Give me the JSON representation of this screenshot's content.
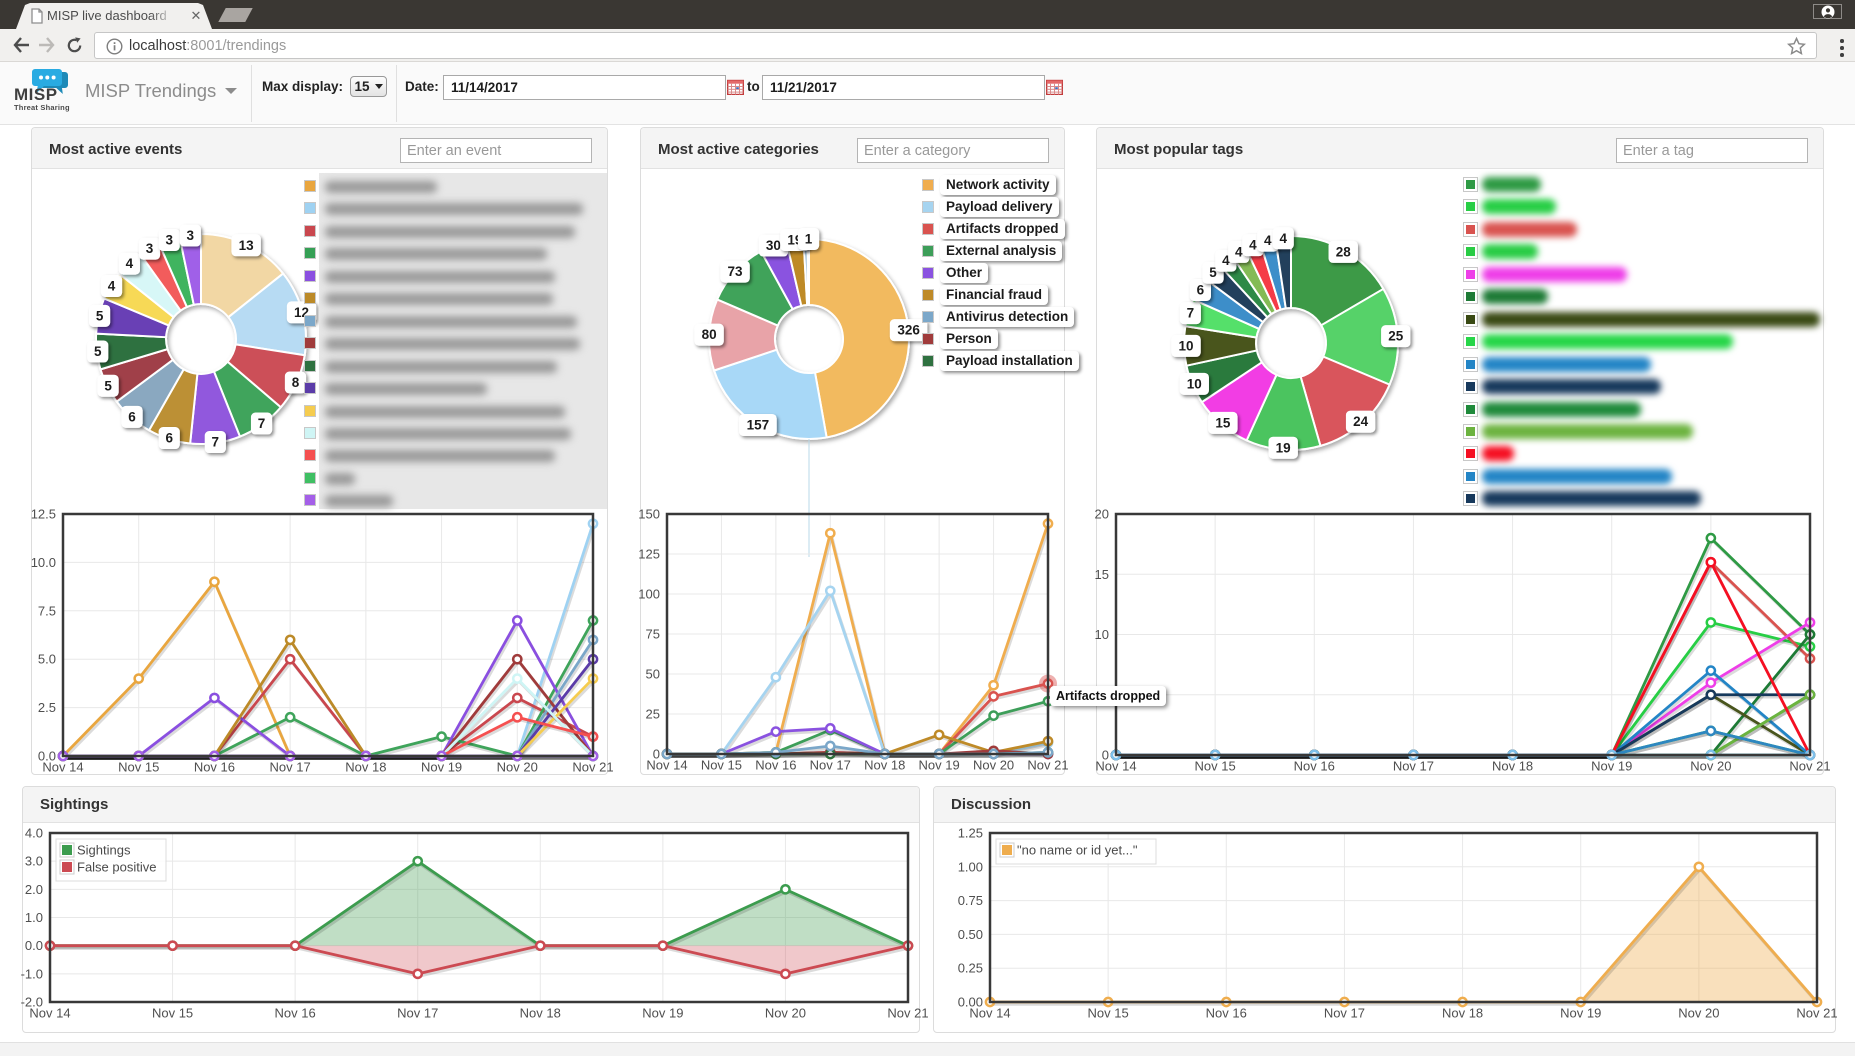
{
  "browser": {
    "tab_title": "MISP live dashboard",
    "url_host": "localhost",
    "url_rest": ":8001/trendings"
  },
  "header": {
    "brand": "MISP",
    "brand_tagline": "Threat Sharing",
    "nav_title": "MISP Trendings",
    "max_display_label": "Max display:",
    "max_display_value": "15",
    "date_label": "Date:",
    "date_from": "11/14/2017",
    "date_to_word": "to",
    "date_to": "11/21/2017"
  },
  "panels": {
    "events": {
      "title": "Most active events",
      "input_placeholder": "Enter an event"
    },
    "categories": {
      "title": "Most active categories",
      "input_placeholder": "Enter a category"
    },
    "tags": {
      "title": "Most popular tags",
      "input_placeholder": "Enter a tag"
    },
    "sightings": {
      "title": "Sightings"
    },
    "discussion": {
      "title": "Discussion"
    }
  },
  "tooltip": {
    "text": "Artifacts dropped"
  },
  "legends": {
    "events": [
      {
        "color": "#e9a63f",
        "blur_width": 112
      },
      {
        "color": "#9fd2f2",
        "blur_width": 258
      },
      {
        "color": "#c9474e",
        "blur_width": 250
      },
      {
        "color": "#35a055",
        "blur_width": 222
      },
      {
        "color": "#8a4fe0",
        "blur_width": 230
      },
      {
        "color": "#bc8a28",
        "blur_width": 228
      },
      {
        "color": "#7ba7c9",
        "blur_width": 252
      },
      {
        "color": "#a03b3b",
        "blur_width": 255
      },
      {
        "color": "#2f7140",
        "blur_width": 232
      },
      {
        "color": "#5b3ca8",
        "blur_width": 162
      },
      {
        "color": "#f5cc4f",
        "blur_width": 240
      },
      {
        "color": "#cff5f5",
        "blur_width": 246
      },
      {
        "color": "#f55050",
        "blur_width": 230
      },
      {
        "color": "#3fbf63",
        "blur_width": 30
      },
      {
        "color": "#a45fe8",
        "blur_width": 68
      }
    ],
    "categories": [
      {
        "color": "#f0ad4e",
        "label": "Network activity"
      },
      {
        "color": "#a6d4f0",
        "label": "Payload delivery"
      },
      {
        "color": "#d9534f",
        "label": "Artifacts dropped"
      },
      {
        "color": "#3d9e59",
        "label": "External analysis"
      },
      {
        "color": "#8a52e0",
        "label": "Other"
      },
      {
        "color": "#be8a28",
        "label": "Financial fraud"
      },
      {
        "color": "#7ba7c9",
        "label": "Antivirus detection"
      },
      {
        "color": "#a03b3b",
        "label": "Person"
      },
      {
        "color": "#2f7140",
        "label": "Payload installation"
      }
    ],
    "tags": [
      {
        "color": "#2e9a44",
        "pill_width": 59
      },
      {
        "color": "#27ce45",
        "pill_width": 74
      },
      {
        "color": "#d9534f",
        "pill_width": 95
      },
      {
        "color": "#28cc44",
        "pill_width": 56
      },
      {
        "color": "#ee3ee8",
        "pill_width": 145
      },
      {
        "color": "#1d7a35",
        "pill_width": 66
      },
      {
        "color": "#3a4a14",
        "pill_width": 338
      },
      {
        "color": "#26d648",
        "pill_width": 251
      },
      {
        "color": "#2385c6",
        "pill_width": 169
      },
      {
        "color": "#17395c",
        "pill_width": 179
      },
      {
        "color": "#1f8a3b",
        "pill_width": 159
      },
      {
        "color": "#6cb33f",
        "pill_width": 211
      },
      {
        "color": "#f50f22",
        "pill_width": 32
      },
      {
        "color": "#2385c6",
        "pill_width": 190
      },
      {
        "color": "#17395c",
        "pill_width": 219
      }
    ]
  },
  "chart_data": [
    {
      "id": "events-donut",
      "type": "pie",
      "title": "Most active events",
      "values": [
        13,
        12,
        8,
        7,
        7,
        6,
        6,
        5,
        5,
        5,
        4,
        4,
        3,
        3,
        3
      ],
      "labels": [
        "13",
        "12",
        "8",
        "7",
        "7",
        "6",
        "6",
        "5",
        "5",
        "5",
        "4",
        "4",
        "3",
        "3",
        "3"
      ],
      "colors": [
        "#f2d7a4",
        "#b7dbf3",
        "#cc5058",
        "#3fa45b",
        "#9159dd",
        "#bc9036",
        "#8aa8c0",
        "#a04148",
        "#2f7140",
        "#6940b5",
        "#f7d957",
        "#d7f7f7",
        "#f25c5c",
        "#41b45e",
        "#a061e8"
      ]
    },
    {
      "id": "categories-donut",
      "type": "pie",
      "title": "Most active categories",
      "values": [
        326,
        157,
        80,
        73,
        30,
        19,
        4,
        1,
        1
      ],
      "labels": [
        "326",
        "157",
        "80",
        "73",
        "30",
        "19",
        "",
        "",
        "1"
      ],
      "colors": [
        "#f2ba5e",
        "#a8d8f7",
        "#e8a3a8",
        "#3fa35a",
        "#8a52e0",
        "#be8a28",
        "#7ba7c9",
        "#a03b3b",
        "#2f7140"
      ],
      "categories": [
        "Network activity",
        "Payload delivery",
        "Artifacts dropped",
        "External analysis",
        "Other",
        "Financial fraud",
        "Antivirus detection",
        "Person",
        "Payload installation"
      ]
    },
    {
      "id": "tags-donut",
      "type": "pie",
      "title": "Most popular tags",
      "values": [
        28,
        25,
        24,
        19,
        15,
        10,
        10,
        7,
        6,
        5,
        4,
        4,
        4,
        4,
        4
      ],
      "labels": [
        "28",
        "25",
        "24",
        "19",
        "15",
        "10",
        "10",
        "7",
        "6",
        "5",
        "4",
        "4",
        "4",
        "4",
        "4"
      ],
      "colors": [
        "#3c9a47",
        "#56d269",
        "#d9545c",
        "#4cc45e",
        "#f23ee4",
        "#2a7a3c",
        "#49551d",
        "#54e06a",
        "#3e8ec9",
        "#23415c",
        "#2f8a47",
        "#84bb55",
        "#f53a47",
        "#3e8ec9",
        "#23415c"
      ]
    },
    {
      "id": "events-line",
      "type": "line",
      "x": [
        "Nov 14",
        "Nov 15",
        "Nov 16",
        "Nov 17",
        "Nov 18",
        "Nov 19",
        "Nov 20",
        "Nov 21"
      ],
      "ylim": [
        0,
        12.5
      ],
      "yticks": [
        "0.0",
        "2.5",
        "5.0",
        "7.5",
        "10.0",
        "12.5"
      ],
      "series": [
        {
          "color": "#e9a63f",
          "values": [
            0,
            4,
            9,
            0,
            0,
            0,
            0,
            0
          ]
        },
        {
          "color": "#9fd2f2",
          "values": [
            0,
            0,
            0,
            0,
            0,
            0,
            0,
            12
          ]
        },
        {
          "color": "#c9474e",
          "values": [
            0,
            0,
            0,
            5,
            0,
            0,
            3,
            1
          ]
        },
        {
          "color": "#3fa45b",
          "values": [
            0,
            0,
            0,
            2,
            0,
            1,
            0,
            7
          ]
        },
        {
          "color": "#8a4fe0",
          "values": [
            0,
            0,
            3,
            0,
            0,
            0,
            7,
            0
          ]
        },
        {
          "color": "#bc8a28",
          "values": [
            0,
            0,
            0,
            6,
            0,
            0,
            0,
            0
          ]
        },
        {
          "color": "#7ba7c9",
          "values": [
            0,
            0,
            0,
            0,
            0,
            0,
            0,
            6
          ]
        },
        {
          "color": "#a03b3b",
          "values": [
            0,
            0,
            0,
            0,
            0,
            0,
            5,
            0
          ]
        },
        {
          "color": "#2f7140",
          "values": [
            0,
            0,
            0,
            0,
            0,
            0,
            0,
            0
          ]
        },
        {
          "color": "#5b3ca8",
          "values": [
            0,
            0,
            0,
            0,
            0,
            0,
            0,
            5
          ]
        },
        {
          "color": "#f5cc4f",
          "values": [
            0,
            0,
            0,
            0,
            0,
            0,
            0,
            4
          ]
        },
        {
          "color": "#cff5f5",
          "values": [
            0,
            0,
            0,
            0,
            0,
            0,
            4,
            0
          ]
        },
        {
          "color": "#f55050",
          "values": [
            0,
            0,
            0,
            0,
            0,
            0,
            2,
            1
          ]
        },
        {
          "color": "#3fbf63",
          "values": [
            0,
            0,
            0,
            0,
            0,
            0,
            0,
            0
          ]
        },
        {
          "color": "#a45fe8",
          "values": [
            0,
            0,
            0,
            0,
            0,
            0,
            0,
            0
          ]
        }
      ]
    },
    {
      "id": "categories-line",
      "type": "line",
      "x": [
        "Nov 14",
        "Nov 15",
        "Nov 16",
        "Nov 17",
        "Nov 18",
        "Nov 19",
        "Nov 20",
        "Nov 21"
      ],
      "ylim": [
        0,
        150
      ],
      "yticks": [
        "0",
        "25",
        "50",
        "75",
        "100",
        "125",
        "150"
      ],
      "series": [
        {
          "name": "Network activity",
          "color": "#f0ad4e",
          "values": [
            0,
            0,
            1,
            138,
            0,
            0,
            43,
            144
          ]
        },
        {
          "name": "Payload delivery",
          "color": "#a6d4f0",
          "values": [
            0,
            0,
            48,
            102,
            0,
            0,
            0,
            7
          ]
        },
        {
          "name": "Artifacts dropped",
          "color": "#d9534f",
          "values": [
            0,
            0,
            0,
            1,
            0,
            0,
            36,
            44
          ],
          "highlight_last": true
        },
        {
          "name": "External analysis",
          "color": "#3d9e59",
          "values": [
            0,
            0,
            1,
            15,
            0,
            0,
            24,
            33
          ]
        },
        {
          "name": "Other",
          "color": "#8a52e0",
          "values": [
            0,
            0,
            14,
            16,
            0,
            0,
            0,
            0
          ]
        },
        {
          "name": "Financial fraud",
          "color": "#be8a28",
          "values": [
            0,
            0,
            0,
            0,
            0,
            12,
            1,
            8
          ]
        },
        {
          "name": "Person",
          "color": "#a03b3b",
          "values": [
            0,
            0,
            0,
            1,
            0,
            0,
            2,
            0
          ]
        },
        {
          "name": "Payload installation",
          "color": "#2f7140",
          "values": [
            0,
            0,
            0,
            0,
            0,
            0,
            0,
            1
          ]
        },
        {
          "name": "Antivirus detection",
          "color": "#7ba7c9",
          "values": [
            0,
            0,
            1,
            5,
            0,
            0,
            0,
            1
          ]
        }
      ]
    },
    {
      "id": "tags-line",
      "type": "line",
      "x": [
        "Nov 14",
        "Nov 15",
        "Nov 16",
        "Nov 17",
        "Nov 18",
        "Nov 19",
        "Nov 20",
        "Nov 21"
      ],
      "ylim": [
        0,
        20
      ],
      "yticks": [
        "0",
        "5",
        "10",
        "15",
        "20"
      ],
      "series": [
        {
          "color": "#2e9a44",
          "values": [
            0,
            0,
            0,
            0,
            0,
            0,
            18,
            10
          ]
        },
        {
          "color": "#27ce45",
          "values": [
            0,
            0,
            0,
            0,
            0,
            0,
            11,
            9
          ]
        },
        {
          "color": "#d9534f",
          "values": [
            0,
            0,
            0,
            0,
            0,
            0,
            16,
            8
          ]
        },
        {
          "color": "#28cc44",
          "values": [
            0,
            0,
            0,
            0,
            0,
            0,
            0,
            5
          ]
        },
        {
          "color": "#ee3ee8",
          "values": [
            0,
            0,
            0,
            0,
            0,
            0,
            6,
            11
          ]
        },
        {
          "color": "#1d7a35",
          "values": [
            0,
            0,
            0,
            0,
            0,
            0,
            0,
            10
          ]
        },
        {
          "color": "#49551d",
          "values": [
            0,
            0,
            0,
            0,
            0,
            0,
            5,
            0
          ]
        },
        {
          "color": "#26d648",
          "values": [
            0,
            0,
            0,
            0,
            0,
            0,
            2,
            0
          ]
        },
        {
          "color": "#2385c6",
          "values": [
            0,
            0,
            0,
            0,
            0,
            0,
            7,
            0
          ]
        },
        {
          "color": "#17395c",
          "values": [
            0,
            0,
            0,
            0,
            0,
            0,
            5,
            5
          ]
        },
        {
          "color": "#1f8a3b",
          "values": [
            0,
            0,
            0,
            0,
            0,
            0,
            0,
            0
          ]
        },
        {
          "color": "#6cb33f",
          "values": [
            0,
            0,
            0,
            0,
            0,
            0,
            0,
            5
          ]
        },
        {
          "color": "#f50f22",
          "values": [
            0,
            0,
            0,
            0,
            0,
            0,
            16,
            0
          ]
        },
        {
          "color": "#2e86c1",
          "values": [
            0,
            0,
            0,
            0,
            0,
            0,
            2,
            0
          ]
        },
        {
          "color": "#7ec0ea",
          "values": [
            0,
            0,
            0,
            0,
            0,
            0,
            0,
            0
          ]
        }
      ]
    },
    {
      "id": "sightings-area",
      "type": "area",
      "x": [
        "Nov 14",
        "Nov 15",
        "Nov 16",
        "Nov 17",
        "Nov 18",
        "Nov 19",
        "Nov 20",
        "Nov 21"
      ],
      "ylim": [
        -2,
        4
      ],
      "yticks": [
        "-2.0",
        "-1.0",
        "0.0",
        "1.0",
        "2.0",
        "3.0",
        "4.0"
      ],
      "legend": [
        "Sightings",
        "False positive"
      ],
      "series": [
        {
          "name": "Sightings",
          "color": "#3c9c4e",
          "fill": "rgba(74,160,88,0.35)",
          "values": [
            0,
            0,
            0,
            3,
            0,
            0,
            2,
            0
          ]
        },
        {
          "name": "False positive",
          "color": "#cc4a52",
          "fill": "rgba(204,74,82,0.30)",
          "values": [
            0,
            0,
            0,
            -1,
            0,
            0,
            -1,
            0
          ]
        }
      ]
    },
    {
      "id": "discussion-area",
      "type": "area",
      "x": [
        "Nov 14",
        "Nov 15",
        "Nov 16",
        "Nov 17",
        "Nov 18",
        "Nov 19",
        "Nov 20",
        "Nov 21"
      ],
      "ylim": [
        0,
        1.25
      ],
      "yticks": [
        "0.00",
        "0.25",
        "0.50",
        "0.75",
        "1.00",
        "1.25"
      ],
      "legend": [
        "\"no name or id yet...\""
      ],
      "series": [
        {
          "name": "\"no name or id yet...\"",
          "color": "#efad4e",
          "fill": "rgba(240,173,78,0.38)",
          "values": [
            0,
            0,
            0,
            0,
            0,
            0,
            1,
            0
          ]
        }
      ]
    }
  ]
}
